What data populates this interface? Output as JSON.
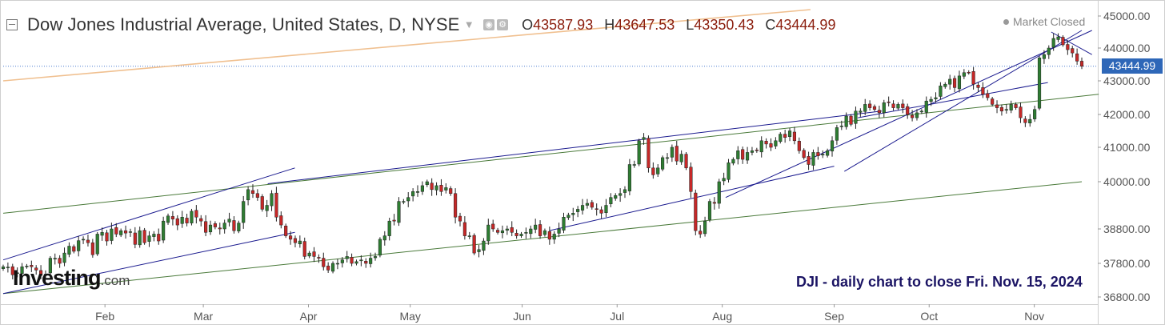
{
  "header": {
    "title": "Dow Jones Industrial Average, United States, D, NYSE",
    "ohlc": [
      {
        "key": "O",
        "value": "43587.93"
      },
      {
        "key": "H",
        "value": "43647.53"
      },
      {
        "key": "L",
        "value": "43350.43"
      },
      {
        "key": "C",
        "value": "43444.99"
      }
    ]
  },
  "market_status": "Market Closed",
  "logo": {
    "brand": "Investing",
    "suffix": ".com"
  },
  "annotation": "DJI - daily chart to close Fri. Nov. 15, 2024",
  "last_price_label": "43444.99",
  "colors": {
    "up": "#2e7d32",
    "down": "#c62828",
    "trend_blue": "#1b1b8f",
    "trend_green": "#4a7a3a",
    "trend_orange": "#f0c090",
    "price_tag": "#2e67b8",
    "grid": "#e6e6e6"
  },
  "chart_data": {
    "type": "candlestick",
    "title": "Dow Jones Industrial Average, United States, D, NYSE",
    "x_start": "2024-01-02",
    "x_end": "2024-11-15",
    "ylim": [
      36600,
      45100
    ],
    "y_ticks": [
      "45000.00",
      "44000.00",
      "43000.00",
      "42000.00",
      "41000.00",
      "40000.00",
      "38800.00",
      "37800.00",
      "36800.00"
    ],
    "x_ticks": [
      {
        "label": "Feb",
        "date": "2024-02-01"
      },
      {
        "label": "Mar",
        "date": "2024-03-01"
      },
      {
        "label": "Apr",
        "date": "2024-04-01"
      },
      {
        "label": "May",
        "date": "2024-05-01"
      },
      {
        "label": "Jun",
        "date": "2024-06-03"
      },
      {
        "label": "Jul",
        "date": "2024-07-01"
      },
      {
        "label": "Aug",
        "date": "2024-08-01"
      },
      {
        "label": "Sep",
        "date": "2024-09-03"
      },
      {
        "label": "Oct",
        "date": "2024-10-01"
      },
      {
        "label": "Nov",
        "date": "2024-11-01"
      }
    ],
    "last_close": 43444.99,
    "grid": false,
    "close_series": [
      37700,
      37690,
      37460,
      37520,
      37700,
      37720,
      37700,
      37600,
      37440,
      37480,
      37950,
      37950,
      37800,
      38100,
      38300,
      38150,
      38460,
      38500,
      38400,
      38050,
      38650,
      38700,
      38450,
      38800,
      38650,
      38750,
      38680,
      38720,
      38350,
      38750,
      38400,
      38600,
      38650,
      38450,
      39000,
      39130,
      39050,
      38900,
      39100,
      38950,
      39250,
      39100,
      39000,
      38700,
      38900,
      38850,
      38800,
      38950,
      39050,
      38750,
      38950,
      39500,
      39800,
      39700,
      39600,
      39300,
      39400,
      39700,
      39100,
      38900,
      38600,
      38500,
      38400,
      38450,
      38000,
      38100,
      38000,
      37950,
      37700,
      37600,
      37800,
      37800,
      37900,
      38000,
      37800,
      37850,
      37900,
      37800,
      37950,
      38000,
      38500,
      38600,
      39000,
      39000,
      39500,
      39500,
      39600,
      39750,
      39750,
      39900,
      40000,
      39800,
      39900,
      39750,
      39850,
      39700,
      39100,
      39000,
      38600,
      38600,
      38100,
      38200,
      38450,
      38900,
      38800,
      38700,
      38750,
      38800,
      38700,
      38600,
      38650,
      38700,
      38800,
      38900,
      38600,
      38750,
      38500,
      38650,
      38800,
      39100,
      39150,
      39200,
      39300,
      39400,
      39450,
      39350,
      39300,
      39200,
      39400,
      39600,
      39650,
      39700,
      39800,
      40500,
      40500,
      41200,
      41300,
      40400,
      40200,
      40400,
      40700,
      40700,
      41000,
      40600,
      40800,
      40400,
      39750,
      38750,
      38650,
      39000,
      39500,
      39450,
      40000,
      40100,
      40550,
      40650,
      40900,
      40650,
      40850,
      40900,
      40900,
      41200,
      41100,
      41000,
      41200,
      41400,
      41300,
      41500,
      41200,
      40900,
      40700,
      40500,
      40850,
      40750,
      40800,
      40900,
      41200,
      41600,
      41650,
      41950,
      41700,
      42100,
      42100,
      42300,
      42200,
      42150,
      42050,
      42350,
      42350,
      42200,
      42300,
      42200,
      42000,
      41900,
      42050,
      42100,
      42400,
      42450,
      42500,
      42850,
      42900,
      43050,
      42800,
      43150,
      43250,
      43250,
      42900,
      42800,
      42600,
      42500,
      42300,
      42200,
      42100,
      42150,
      42300,
      42200,
      41900,
      41750,
      41850,
      42150,
      43700,
      43800,
      44000,
      44300,
      44350,
      44100,
      43950,
      43850,
      43600,
      43444.99
    ],
    "trend_lines_blue": [
      {
        "start": {
          "date": "2024-01-02",
          "price": 37900
        },
        "end": {
          "date": "2024-03-28",
          "price": 40400
        }
      },
      {
        "start": {
          "date": "2024-01-02",
          "price": 36900
        },
        "end": {
          "date": "2024-03-28",
          "price": 38700
        }
      },
      {
        "start": {
          "date": "2024-03-20",
          "price": 39950
        },
        "end": {
          "date": "2024-09-17",
          "price": 42100
        }
      },
      {
        "start": {
          "date": "2024-06-11",
          "price": 38750
        },
        "end": {
          "date": "2024-09-03",
          "price": 40450
        }
      },
      {
        "start": {
          "date": "2024-09-06",
          "price": 40300
        },
        "end": {
          "date": "2024-11-15",
          "price": 44550
        }
      },
      {
        "start": {
          "date": "2024-09-10",
          "price": 41900
        },
        "end": {
          "date": "2024-11-05",
          "price": 42950
        }
      },
      {
        "start": {
          "date": "2024-08-02",
          "price": 39600
        },
        "end": {
          "date": "2024-11-18",
          "price": 44550
        }
      },
      {
        "start": {
          "date": "2024-11-06",
          "price": 44500
        },
        "end": {
          "date": "2024-11-18",
          "price": 43800
        }
      }
    ],
    "trend_lines_green": [
      {
        "start": {
          "date": "2024-01-02",
          "price": 39200
        },
        "end": {
          "date": "2024-11-20",
          "price": 42600
        }
      },
      {
        "start": {
          "date": "2024-01-02",
          "price": 36900
        },
        "end": {
          "date": "2024-11-15",
          "price": 40000
        }
      }
    ],
    "trend_lines_orange": [
      {
        "start": {
          "date": "2024-01-02",
          "price": 43000
        },
        "end": {
          "date": "2024-08-27",
          "price": 45200
        }
      }
    ]
  }
}
